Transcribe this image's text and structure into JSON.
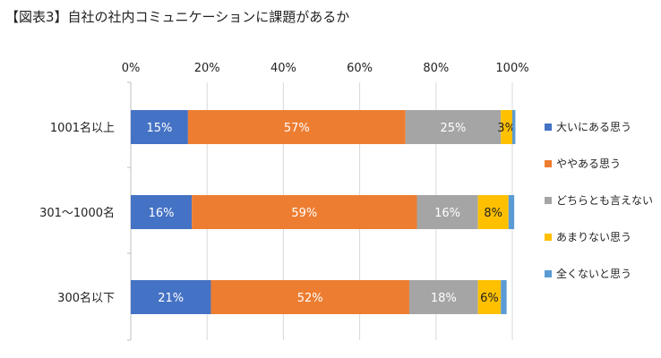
{
  "title": "【図表3】自社の社内コミュニケーションに課題があるか",
  "chart_data": {
    "type": "bar",
    "orientation": "horizontal",
    "stacked": true,
    "percent_axis": true,
    "xlim": [
      0,
      100
    ],
    "x_ticks": [
      "0%",
      "20%",
      "40%",
      "60%",
      "80%",
      "100%"
    ],
    "x_axis_position": "top",
    "grid": true,
    "legend_position": "right",
    "categories": [
      "1001名以上",
      "301～1000名",
      "300名以下"
    ],
    "series": [
      {
        "name": "大いにある思う",
        "color": "#4472C4",
        "values": [
          15,
          16,
          21
        ],
        "labels": [
          "15%",
          "16%",
          "21%"
        ],
        "label_color": "#ffffff"
      },
      {
        "name": "ややある思う",
        "color": "#ED7D31",
        "values": [
          57,
          59,
          52
        ],
        "labels": [
          "57%",
          "59%",
          "52%"
        ],
        "label_color": "#ffffff"
      },
      {
        "name": "どちらとも言えない",
        "color": "#A5A5A5",
        "values": [
          25,
          16,
          18
        ],
        "labels": [
          "25%",
          "16%",
          "18%"
        ],
        "label_color": "#ffffff"
      },
      {
        "name": "あまりない思う",
        "color": "#FFC000",
        "values": [
          3,
          8,
          6
        ],
        "labels": [
          "3%",
          "8%",
          "6%"
        ],
        "label_color": "#222222"
      },
      {
        "name": "全くないと思う",
        "color": "#5B9BD5",
        "values": [
          0.8,
          1.5,
          1.5
        ],
        "labels": [
          "",
          "",
          ""
        ],
        "label_color": "#ffffff"
      }
    ]
  }
}
